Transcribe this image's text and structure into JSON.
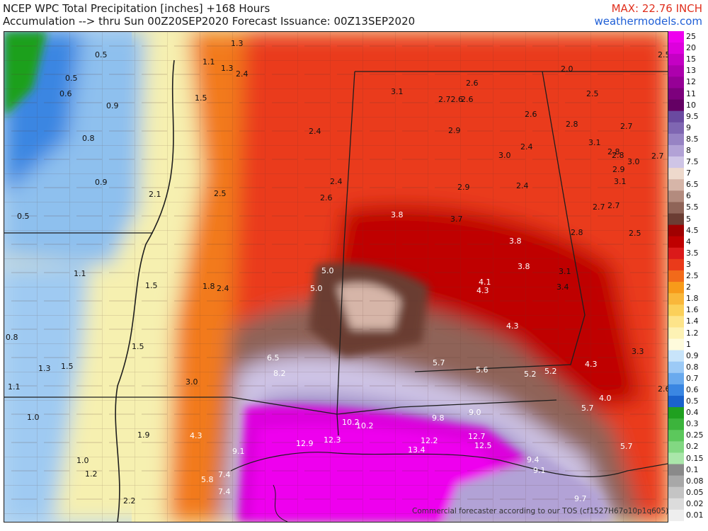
{
  "header": {
    "title_line1": "NCEP WPC Total Precipitation [inches] +168 Hours",
    "title_line2": "Accumulation --> thru Sun 00Z20SEP2020   Forecast Issuance: 00Z13SEP2020",
    "max_label": "MAX: 22.76 INCH",
    "site": "weathermodels.com"
  },
  "footer": "Commercial forecaster according to our TOS (cf1527H67o10p1q605)",
  "legend": {
    "levels": [
      "25",
      "20",
      "15",
      "13",
      "12",
      "11",
      "10",
      "9.5",
      "9",
      "8.5",
      "8",
      "7.5",
      "7",
      "6.5",
      "6",
      "5.5",
      "5",
      "4.5",
      "4",
      "3.5",
      "3",
      "2.5",
      "2",
      "1.8",
      "1.6",
      "1.4",
      "1.2",
      "1",
      "0.9",
      "0.8",
      "0.7",
      "0.6",
      "0.5",
      "0.4",
      "0.3",
      "0.25",
      "0.2",
      "0.15",
      "0.1",
      "0.08",
      "0.05",
      "0.02",
      "0.01"
    ],
    "colors": [
      "#ee00ee",
      "#dd00dd",
      "#c400c4",
      "#ad00ad",
      "#960096",
      "#7d007d",
      "#640064",
      "#6a4aa0",
      "#7f66b2",
      "#9783c4",
      "#b2a2d6",
      "#cfc5e6",
      "#eed9cc",
      "#d6b5a8",
      "#b38b7e",
      "#8f6458",
      "#6b3d33",
      "#a00000",
      "#bf0000",
      "#db1a1a",
      "#ea3a1a",
      "#f26a1a",
      "#f79a1a",
      "#f9b73a",
      "#fbd05a",
      "#fde48a",
      "#fdf2b4",
      "#fefbdc",
      "#c8e4fa",
      "#9ccaf6",
      "#6aaaee",
      "#3a86e2",
      "#1a62cc",
      "#1fa01f",
      "#3cb43c",
      "#5cc85c",
      "#82d882",
      "#aae6aa",
      "#8a8a8a",
      "#a8a8a8",
      "#c4c4c4",
      "#dcdcdc",
      "#eeeeee"
    ]
  },
  "map_labels": [
    {
      "text": "1.3"
    },
    {
      "text": "0.5"
    },
    {
      "text": "1.1"
    },
    {
      "text": "1.3"
    },
    {
      "text": "2.4"
    },
    {
      "text": "0.5"
    },
    {
      "text": "0.6"
    },
    {
      "text": "0.9"
    },
    {
      "text": "1.5"
    },
    {
      "text": "0.8"
    },
    {
      "text": "2.4"
    },
    {
      "text": "0.9"
    },
    {
      "text": "2.1"
    },
    {
      "text": "2.5"
    },
    {
      "text": "2.4"
    },
    {
      "text": "2.6"
    },
    {
      "text": "0.5"
    },
    {
      "text": "1.1"
    },
    {
      "text": "1.5"
    },
    {
      "text": "1.8"
    },
    {
      "text": "2.4"
    },
    {
      "text": "5.0"
    },
    {
      "text": "5.0"
    },
    {
      "text": "0.8"
    },
    {
      "text": "1.5"
    },
    {
      "text": "1.3"
    },
    {
      "text": "1.5"
    },
    {
      "text": "1.1"
    },
    {
      "text": "6.5"
    },
    {
      "text": "8.2"
    },
    {
      "text": "3.0"
    },
    {
      "text": "1.0"
    },
    {
      "text": "1.9"
    },
    {
      "text": "4.3"
    },
    {
      "text": "1.0"
    },
    {
      "text": "1.2"
    },
    {
      "text": "9.1"
    },
    {
      "text": "5.8"
    },
    {
      "text": "7.4"
    },
    {
      "text": "7.4"
    },
    {
      "text": "2.2"
    },
    {
      "text": "3.7"
    },
    {
      "text": "3.1"
    },
    {
      "text": "2.72.6"
    },
    {
      "text": "2.6"
    },
    {
      "text": "2.6"
    },
    {
      "text": "2.0"
    },
    {
      "text": "2.5"
    },
    {
      "text": "2.5"
    },
    {
      "text": "2.9"
    },
    {
      "text": "2.6"
    },
    {
      "text": "2.8"
    },
    {
      "text": "2.4"
    },
    {
      "text": "2.7"
    },
    {
      "text": "3.0"
    },
    {
      "text": "3.1"
    },
    {
      "text": "2.8"
    },
    {
      "text": "2.7"
    },
    {
      "text": "2.8"
    },
    {
      "text": "3.0"
    },
    {
      "text": "2.9"
    },
    {
      "text": "2.9"
    },
    {
      "text": "2.4"
    },
    {
      "text": "3.1"
    },
    {
      "text": "2.7"
    },
    {
      "text": "2.7"
    },
    {
      "text": "3.8"
    },
    {
      "text": "3.7"
    },
    {
      "text": "2.8"
    },
    {
      "text": "2.5"
    },
    {
      "text": "3.8"
    },
    {
      "text": "3.8"
    },
    {
      "text": "3.1"
    },
    {
      "text": "4.1"
    },
    {
      "text": "4.3"
    },
    {
      "text": "3.4"
    },
    {
      "text": "4.3"
    },
    {
      "text": "3.3"
    },
    {
      "text": "5.7"
    },
    {
      "text": "5.6"
    },
    {
      "text": "5.2"
    },
    {
      "text": "5.2"
    },
    {
      "text": "4.3"
    },
    {
      "text": "2.6"
    },
    {
      "text": "4.0"
    },
    {
      "text": "9.0"
    },
    {
      "text": "5.7"
    },
    {
      "text": "9.8"
    },
    {
      "text": "10.2"
    },
    {
      "text": "10.2"
    },
    {
      "text": "12.9"
    },
    {
      "text": "12.3"
    },
    {
      "text": "12.2"
    },
    {
      "text": "12.7"
    },
    {
      "text": "13.4"
    },
    {
      "text": "12.5"
    },
    {
      "text": "5.7"
    },
    {
      "text": "9.4"
    },
    {
      "text": "9.1"
    },
    {
      "text": "9.7"
    }
  ]
}
